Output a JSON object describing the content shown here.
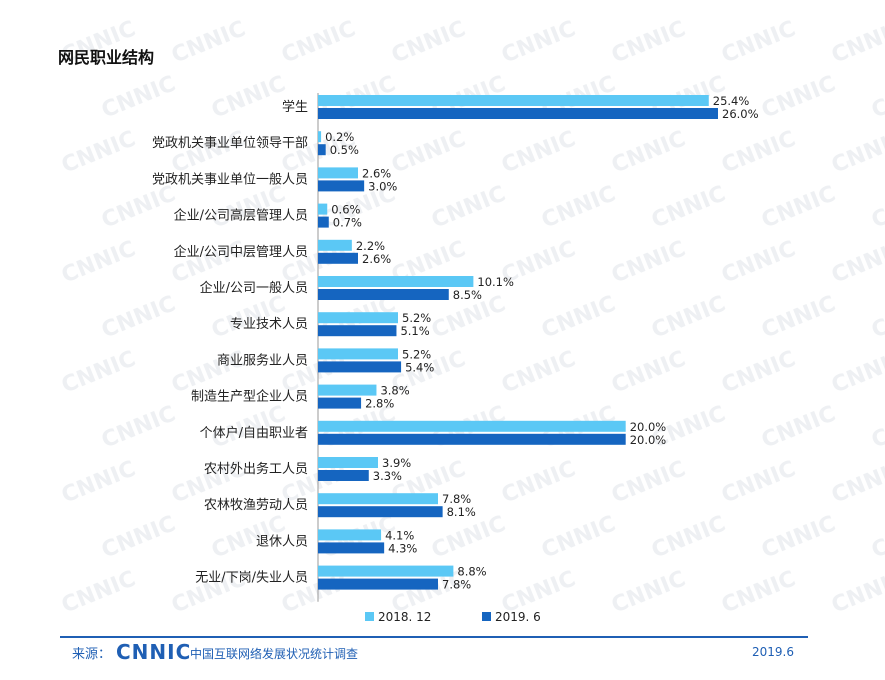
{
  "title": "网民职业结构",
  "watermark": "CNNIC",
  "footer": {
    "source_label": "来源：",
    "logo": "CNNIC",
    "org": "中国互联网络发展状况统计调查",
    "date": "2019.6"
  },
  "colors": {
    "series1": "#5bc8f5",
    "series2": "#1565c0",
    "axis": "#999999",
    "text": "#222222"
  },
  "chart_data": {
    "type": "bar",
    "orientation": "horizontal",
    "title": "网民职业结构",
    "categories": [
      "学生",
      "党政机关事业单位领导干部",
      "党政机关事业单位一般人员",
      "企业/公司高层管理人员",
      "企业/公司中层管理人员",
      "企业/公司一般人员",
      "专业技术人员",
      "商业服务业人员",
      "制造生产型企业人员",
      "个体户/自由职业者",
      "农村外出务工人员",
      "农林牧渔劳动人员",
      "退休人员",
      "无业/下岗/失业人员"
    ],
    "series": [
      {
        "name": "2018. 12",
        "values": [
          25.4,
          0.2,
          2.6,
          0.6,
          2.2,
          10.1,
          5.2,
          5.2,
          3.8,
          20.0,
          3.9,
          7.8,
          4.1,
          8.8
        ],
        "labels": [
          "25.4%",
          "0.2%",
          "2.6%",
          "0.6%",
          "2.2%",
          "10.1%",
          "5.2%",
          "5.2%",
          "3.8%",
          "20.0%",
          "3.9%",
          "7.8%",
          "4.1%",
          "8.8%"
        ]
      },
      {
        "name": "2019. 6",
        "values": [
          26.0,
          0.5,
          3.0,
          0.7,
          2.6,
          8.5,
          5.1,
          5.4,
          2.8,
          20.0,
          3.3,
          8.1,
          4.3,
          7.8
        ],
        "labels": [
          "26.0%",
          "0.5%",
          "3.0%",
          "0.7%",
          "2.6%",
          "8.5%",
          "5.1%",
          "5.4%",
          "2.8%",
          "20.0%",
          "3.3%",
          "8.1%",
          "4.3%",
          "7.8%"
        ]
      }
    ],
    "legend_position": "bottom",
    "xlim": [
      0,
      26.0
    ]
  }
}
